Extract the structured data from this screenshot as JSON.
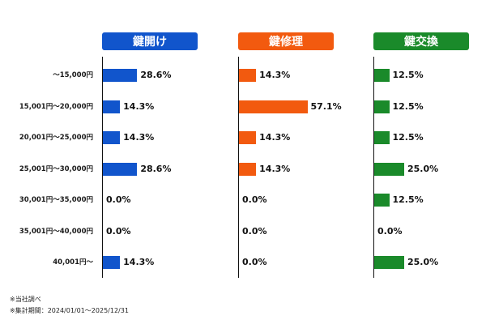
{
  "chart_data": {
    "type": "bar",
    "orientation": "horizontal",
    "categories": [
      "〜15,000円",
      "15,001円〜20,000円",
      "20,001円〜25,000円",
      "25,001円〜30,000円",
      "30,001円〜35,000円",
      "35,001円〜40,000円",
      "40,001円〜"
    ],
    "series": [
      {
        "name": "鍵開け",
        "color": "#1155cc",
        "values": [
          28.6,
          14.3,
          14.3,
          28.6,
          0.0,
          0.0,
          14.3
        ],
        "labels": [
          "28.6%",
          "14.3%",
          "14.3%",
          "28.6%",
          "0.0%",
          "0.0%",
          "14.3%"
        ]
      },
      {
        "name": "鍵修理",
        "color": "#f25a0f",
        "values": [
          14.3,
          57.1,
          14.3,
          14.3,
          0.0,
          0.0,
          0.0
        ],
        "labels": [
          "14.3%",
          "57.1%",
          "14.3%",
          "14.3%",
          "0.0%",
          "0.0%",
          "0.0%"
        ]
      },
      {
        "name": "鍵交換",
        "color": "#1a8a2a",
        "values": [
          12.5,
          12.5,
          12.5,
          25.0,
          12.5,
          0.0,
          25.0
        ],
        "labels": [
          "12.5%",
          "12.5%",
          "12.5%",
          "25.0%",
          "12.5%",
          "0.0%",
          "25.0%"
        ]
      }
    ],
    "xlim": [
      0,
      100
    ],
    "grid": false,
    "legend": "none"
  },
  "footnotes": [
    "※当社調べ",
    "※集計期間：2024/01/01〜2025/12/31"
  ]
}
